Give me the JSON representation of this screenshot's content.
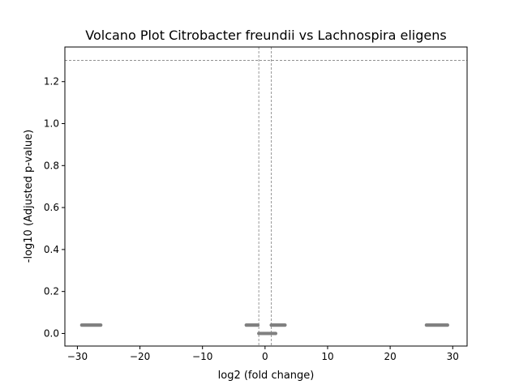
{
  "chart_data": {
    "type": "scatter",
    "title": "Volcano Plot Citrobacter freundii vs Lachnospira eligens",
    "xlabel": "log2 (fold change)",
    "ylabel": "-log10 (Adjusted p-value)",
    "xlim": [
      -32.0,
      32.3
    ],
    "ylim": [
      -0.06,
      1.365
    ],
    "xticks": [
      -30,
      -20,
      -10,
      0,
      10,
      20,
      30
    ],
    "xtick_labels": [
      "−30",
      "−20",
      "−10",
      "0",
      "10",
      "20",
      "30"
    ],
    "yticks": [
      0.0,
      0.2,
      0.4,
      0.6,
      0.8,
      1.0,
      1.2
    ],
    "ytick_labels": [
      "0.0",
      "0.2",
      "0.4",
      "0.6",
      "0.8",
      "1.0",
      "1.2"
    ],
    "threshold_lines": {
      "horizontal_y": 1.30103,
      "vertical_x": [
        -1,
        1
      ],
      "style": "dashed",
      "color": "#808080"
    },
    "grid": false,
    "legend": "none",
    "point_color": "#808080",
    "clusters": [
      {
        "x_min": -29.3,
        "x_max": -26.1,
        "y": 0.04
      },
      {
        "x_min": -3.0,
        "x_max": -1.0,
        "y": 0.04
      },
      {
        "x_min": -1.0,
        "x_max": 1.7,
        "y": 0.0
      },
      {
        "x_min": 1.0,
        "x_max": 3.2,
        "y": 0.04
      },
      {
        "x_min": 25.8,
        "x_max": 29.3,
        "y": 0.04
      }
    ]
  }
}
